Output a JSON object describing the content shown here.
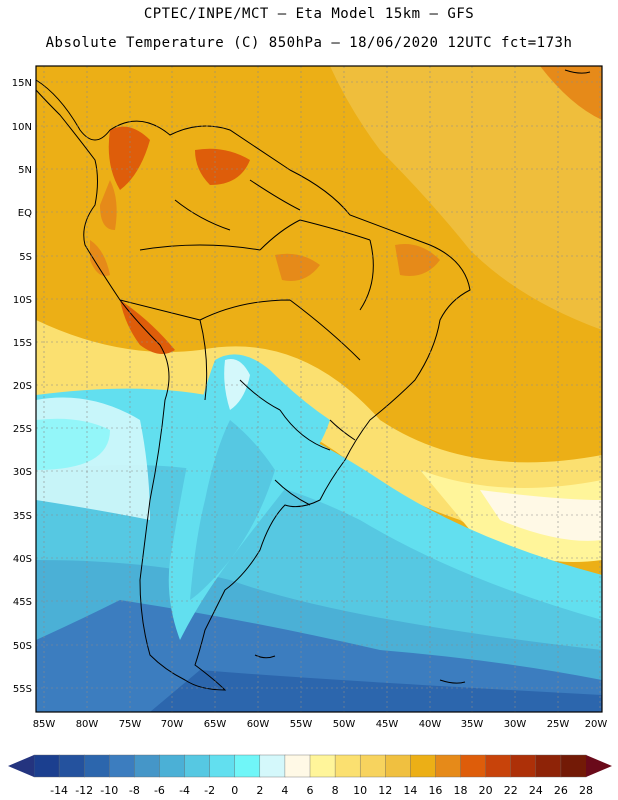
{
  "header": {
    "line1": "CPTEC/INPE/MCT –  Eta Model 15km – GFS",
    "line2": "Absolute Temperature (C) 850hPa – 18/06/2020 12UTC fct=173h"
  },
  "map": {
    "lat_labels": [
      "15N",
      "10N",
      "5N",
      "EQ",
      "5S",
      "10S",
      "15S",
      "20S",
      "25S",
      "30S",
      "35S",
      "40S",
      "45S",
      "50S",
      "55S"
    ],
    "lon_labels": [
      "85W",
      "80W",
      "75W",
      "70W",
      "65W",
      "60W",
      "55W",
      "50W",
      "45W",
      "40W",
      "35W",
      "30W",
      "25W",
      "20W"
    ]
  },
  "colorbar": {
    "colors": [
      "#1b3f8f",
      "#24529e",
      "#2c66ad",
      "#3c7dbf",
      "#4596c8",
      "#4bb0d6",
      "#56c8e2",
      "#62dfef",
      "#70f6f8",
      "#d4f8fb",
      "#fff9e6",
      "#fff59a",
      "#fbe070",
      "#f7d35e",
      "#f0c040",
      "#ecaf16",
      "#e68a19",
      "#de5d0a",
      "#c8430a",
      "#ad3008",
      "#8e2307",
      "#731a06"
    ],
    "labels": [
      "-14",
      "-12",
      "-10",
      "-8",
      "-6",
      "-4",
      "-2",
      "0",
      "2",
      "4",
      "6",
      "8",
      "10",
      "12",
      "14",
      "16",
      "18",
      "20",
      "22",
      "24",
      "26",
      "28"
    ]
  }
}
